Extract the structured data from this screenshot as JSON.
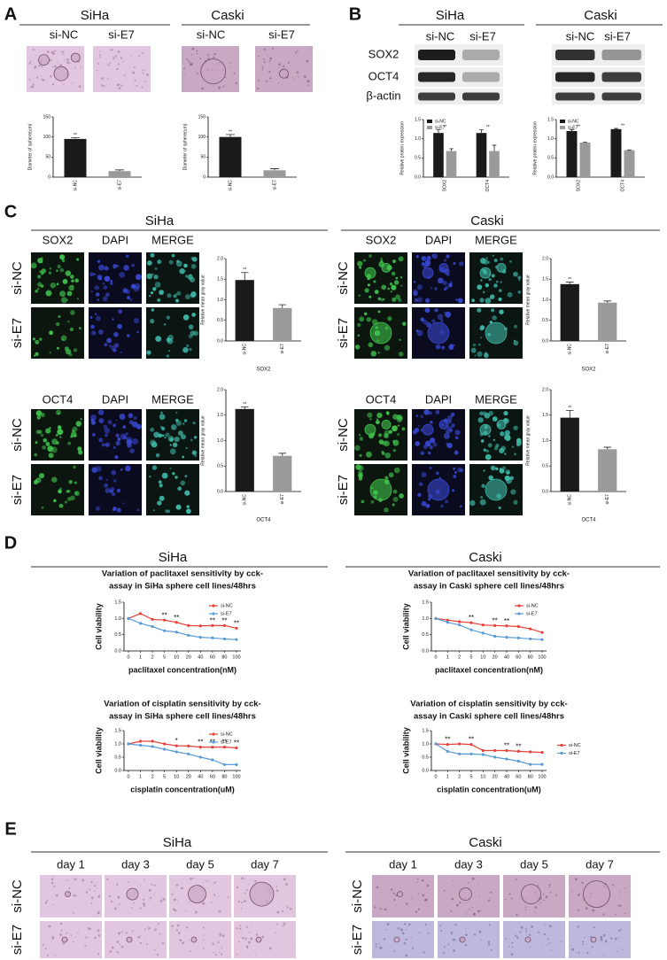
{
  "figure": {
    "letters": [
      "A",
      "B",
      "C",
      "D",
      "E"
    ],
    "cell_lines": [
      "SiHa",
      "Caski"
    ],
    "groups": [
      "si-NC",
      "si-E7"
    ],
    "blot_proteins": [
      "SOX2",
      "OCT4",
      "β-actin"
    ],
    "stains": [
      "SOX2",
      "DAPI",
      "MERGE",
      "OCT4"
    ],
    "days": [
      "day 1",
      "day 3",
      "day 5",
      "day 7"
    ]
  },
  "chart_data": [
    {
      "type": "bar",
      "ylabel": "Diameter of sphere(um)",
      "categories": [
        "si-NC",
        "si-E7"
      ],
      "values": [
        95,
        15
      ],
      "errors": [
        3,
        3
      ],
      "colors": [
        "#1a1a1a",
        "#9a9a9a"
      ],
      "ylim": [
        0,
        150
      ],
      "yticks": [
        0,
        50,
        100,
        150
      ],
      "annotations": [
        {
          "x": "si-NC",
          "text": "**"
        }
      ]
    },
    {
      "type": "bar",
      "ylabel": "Diameter of sphere(um)",
      "categories": [
        "si-NC",
        "si-E7"
      ],
      "values": [
        100,
        17
      ],
      "errors": [
        6,
        4
      ],
      "colors": [
        "#1a1a1a",
        "#9a9a9a"
      ],
      "ylim": [
        0,
        150
      ],
      "yticks": [
        0,
        50,
        100,
        150
      ],
      "annotations": [
        {
          "x": "si-NC",
          "text": "**"
        }
      ]
    },
    {
      "type": "bar",
      "ylabel": "Relative protein expression",
      "categories": [
        "SOX2",
        "OCT4"
      ],
      "series": [
        {
          "name": "si-NC",
          "color": "#1a1a1a",
          "values": [
            1.15,
            1.15
          ],
          "errors": [
            0.08,
            0.08
          ]
        },
        {
          "name": "si-E7",
          "color": "#9a9a9a",
          "values": [
            0.68,
            0.68
          ],
          "errors": [
            0.06,
            0.15
          ]
        }
      ],
      "ylim": [
        0,
        1.5
      ],
      "yticks": [
        {
          "value": 0,
          "label": "0.0"
        },
        {
          "value": 0.5,
          "label": "0.5"
        },
        {
          "value": 1,
          "label": "1.0"
        },
        {
          "value": 1.5,
          "label": "1.5"
        }
      ],
      "legend": "top-left",
      "annotations": [
        {
          "x": "SOX2",
          "text": "**"
        },
        {
          "x": "OCT4",
          "text": "**"
        }
      ]
    },
    {
      "type": "bar",
      "ylabel": "Relative protein expression",
      "categories": [
        "SOX2",
        "OCT4"
      ],
      "series": [
        {
          "name": "si-NC",
          "color": "#1a1a1a",
          "values": [
            1.2,
            1.25
          ],
          "errors": [
            0.04,
            0.02
          ]
        },
        {
          "name": "si-E7",
          "color": "#9a9a9a",
          "values": [
            0.9,
            0.7
          ],
          "errors": [
            0.01,
            0.01
          ]
        }
      ],
      "ylim": [
        0,
        1.5
      ],
      "yticks": [
        {
          "value": 0,
          "label": "0.0"
        },
        {
          "value": 0.5,
          "label": "0.5"
        },
        {
          "value": 1,
          "label": "1.0"
        },
        {
          "value": 1.5,
          "label": "1.5"
        }
      ],
      "legend": "top-left",
      "annotations": [
        {
          "x": "SOX2",
          "text": "**"
        },
        {
          "x": "OCT4",
          "text": "**"
        }
      ]
    },
    {
      "type": "bar",
      "ylabel": "Relative  mean gray value",
      "xlabel": "SOX2",
      "categories": [
        "si-NC",
        "si-E7"
      ],
      "values": [
        1.48,
        0.8
      ],
      "errors": [
        0.18,
        0.08
      ],
      "colors": [
        "#1a1a1a",
        "#9a9a9a"
      ],
      "ylim": [
        0,
        2
      ],
      "yticks": [
        {
          "value": 0,
          "label": "0.0"
        },
        {
          "value": 0.5,
          "label": "0.5"
        },
        {
          "value": 1,
          "label": "1.0"
        },
        {
          "value": 1.5,
          "label": "1.5"
        },
        {
          "value": 2,
          "label": "2.0"
        }
      ],
      "annotations": [
        {
          "x": "si-NC",
          "text": "**"
        }
      ]
    },
    {
      "type": "bar",
      "ylabel": "Relative  mean gray value",
      "xlabel": "OCT4",
      "categories": [
        "si-NC",
        "si-E7"
      ],
      "values": [
        1.62,
        0.7
      ],
      "errors": [
        0.04,
        0.05
      ],
      "colors": [
        "#1a1a1a",
        "#9a9a9a"
      ],
      "ylim": [
        0,
        2
      ],
      "yticks": [
        {
          "value": 0,
          "label": "0.0"
        },
        {
          "value": 0.5,
          "label": "0.5"
        },
        {
          "value": 1,
          "label": "1.0"
        },
        {
          "value": 1.5,
          "label": "1.5"
        },
        {
          "value": 2,
          "label": "2.0"
        }
      ],
      "annotations": [
        {
          "x": "si-NC",
          "text": "**"
        }
      ]
    },
    {
      "type": "bar",
      "ylabel": "Relative  mean gray value",
      "xlabel": "SOX2",
      "categories": [
        "si-NC",
        "si-E7"
      ],
      "values": [
        1.38,
        0.93
      ],
      "errors": [
        0.05,
        0.04
      ],
      "colors": [
        "#1a1a1a",
        "#9a9a9a"
      ],
      "ylim": [
        0,
        2
      ],
      "yticks": [
        {
          "value": 0,
          "label": "0.0"
        },
        {
          "value": 0.5,
          "label": "0.5"
        },
        {
          "value": 1,
          "label": "1.0"
        },
        {
          "value": 1.5,
          "label": "1.5"
        },
        {
          "value": 2,
          "label": "2.0"
        }
      ],
      "annotations": [
        {
          "x": "si-NC",
          "text": "**"
        }
      ]
    },
    {
      "type": "bar",
      "ylabel": "Relative  mean gray value",
      "xlabel": "OCT4",
      "categories": [
        "si-NC",
        "si-E7"
      ],
      "values": [
        1.45,
        0.83
      ],
      "errors": [
        0.14,
        0.04
      ],
      "colors": [
        "#1a1a1a",
        "#9a9a9a"
      ],
      "ylim": [
        0,
        2
      ],
      "yticks": [
        {
          "value": 0,
          "label": "0.0"
        },
        {
          "value": 0.5,
          "label": "0.5"
        },
        {
          "value": 1,
          "label": "1.0"
        },
        {
          "value": 1.5,
          "label": "1.5"
        },
        {
          "value": 2,
          "label": "2.0"
        }
      ],
      "annotations": [
        {
          "x": "si-NC",
          "text": "**"
        }
      ]
    },
    {
      "type": "line",
      "title": [
        "Variation of paclitaxel sensitivity by cck-",
        "assay in SiHa sphere cell lines/48hrs"
      ],
      "ylabel": "Cell viability",
      "xlabel": "paclitaxel concentration(nM)",
      "categories": [
        "0",
        "1",
        "2",
        "5",
        "10",
        "20",
        "40",
        "60",
        "80",
        "100"
      ],
      "series": [
        {
          "name": "si-NC",
          "color": "#e8403a",
          "values": [
            1.0,
            1.15,
            0.97,
            0.95,
            0.88,
            0.78,
            0.77,
            0.78,
            0.78,
            0.7
          ]
        },
        {
          "name": "si-E7",
          "color": "#5b9bd5",
          "values": [
            1.0,
            0.85,
            0.75,
            0.62,
            0.58,
            0.48,
            0.42,
            0.4,
            0.37,
            0.35
          ]
        }
      ],
      "ylim": [
        0,
        1.5
      ],
      "yticks": [
        {
          "value": 0,
          "label": "0.0"
        },
        {
          "value": 0.5,
          "label": "0.5"
        },
        {
          "value": 1,
          "label": "1.0"
        },
        {
          "value": 1.5,
          "label": "1.5"
        }
      ],
      "legend": "top-right",
      "annotations": [
        {
          "x": "5",
          "text": "**"
        },
        {
          "x": "10",
          "text": "**"
        },
        {
          "x": "60",
          "text": "**"
        },
        {
          "x": "80",
          "text": "**"
        },
        {
          "x": "100",
          "text": "**"
        }
      ]
    },
    {
      "type": "line",
      "title": [
        "Variation of paclitaxel sensitivity by cck-",
        "assay in Caski sphere cell lines/48hrs"
      ],
      "ylabel": "Cell viability",
      "xlabel": "paclitaxel concentration(nM)",
      "categories": [
        "0",
        "1",
        "2",
        "5",
        "10",
        "20",
        "40",
        "60",
        "80",
        "100"
      ],
      "series": [
        {
          "name": "si-NC",
          "color": "#e8403a",
          "values": [
            1.0,
            0.95,
            0.9,
            0.87,
            0.8,
            0.78,
            0.77,
            0.75,
            0.68,
            0.57
          ]
        },
        {
          "name": "si-E7",
          "color": "#5b9bd5",
          "values": [
            1.0,
            0.88,
            0.8,
            0.65,
            0.55,
            0.45,
            0.42,
            0.4,
            0.37,
            0.35
          ]
        }
      ],
      "ylim": [
        0,
        1.5
      ],
      "yticks": [
        {
          "value": 0,
          "label": "0.0"
        },
        {
          "value": 0.5,
          "label": "0.5"
        },
        {
          "value": 1,
          "label": "1.0"
        },
        {
          "value": 1.5,
          "label": "1.5"
        }
      ],
      "legend": "top-right",
      "annotations": [
        {
          "x": "5",
          "text": "**"
        },
        {
          "x": "20",
          "text": "**"
        },
        {
          "x": "40",
          "text": "**"
        }
      ]
    },
    {
      "type": "line",
      "title": [
        "Variation of cisplatin sensitivity by cck-",
        "assay in SiHa sphere cell lines/48hrs"
      ],
      "ylabel": "Cell viability",
      "xlabel": "cisplatin concentration(uM)",
      "categories": [
        "0",
        "1",
        "2",
        "5",
        "10",
        "20",
        "40",
        "60",
        "80",
        "100"
      ],
      "series": [
        {
          "name": "si-NC",
          "color": "#e8403a",
          "values": [
            1.0,
            1.1,
            1.1,
            1.0,
            0.93,
            0.92,
            0.88,
            0.88,
            0.88,
            0.85
          ]
        },
        {
          "name": "si-E7",
          "color": "#5b9bd5",
          "values": [
            1.0,
            0.95,
            0.9,
            0.8,
            0.7,
            0.62,
            0.5,
            0.4,
            0.22,
            0.22
          ]
        }
      ],
      "ylim": [
        0,
        1.5
      ],
      "yticks": [
        {
          "value": 0,
          "label": "0.0"
        },
        {
          "value": 0.5,
          "label": "0.5"
        },
        {
          "value": 1,
          "label": "1.0"
        },
        {
          "value": 1.5,
          "label": "1.5"
        }
      ],
      "legend": "top-right",
      "annotations": [
        {
          "x": "10",
          "text": "*"
        },
        {
          "x": "40",
          "text": "**"
        },
        {
          "x": "60",
          "text": "**"
        },
        {
          "x": "80",
          "text": "**"
        },
        {
          "x": "100",
          "text": "**"
        }
      ]
    },
    {
      "type": "line",
      "title": [
        "Variation of cisplatin sensitivity by cck-",
        "assay in Caski sphere cell lines/48hrs"
      ],
      "ylabel": "Cell viability",
      "xlabel": "cisplatin concentration(uM)",
      "categories": [
        "0",
        "1",
        "2",
        "5",
        "10",
        "20",
        "40",
        "60",
        "80",
        "100"
      ],
      "series": [
        {
          "name": "si-NC",
          "color": "#e8403a",
          "values": [
            1.0,
            0.98,
            1.0,
            0.98,
            0.75,
            0.75,
            0.75,
            0.72,
            0.7,
            0.68
          ]
        },
        {
          "name": "si-E7",
          "color": "#5b9bd5",
          "values": [
            1.0,
            0.72,
            0.62,
            0.62,
            0.6,
            0.5,
            0.43,
            0.35,
            0.23,
            0.23
          ]
        }
      ],
      "ylim": [
        0,
        1.5
      ],
      "yticks": [
        {
          "value": 0,
          "label": "0.0"
        },
        {
          "value": 0.5,
          "label": "0.5"
        },
        {
          "value": 1,
          "label": "1.0"
        },
        {
          "value": 1.5,
          "label": "1.5"
        }
      ],
      "legend": "right",
      "annotations": [
        {
          "x": "1",
          "text": "**"
        },
        {
          "x": "5",
          "text": "**"
        },
        {
          "x": "40",
          "text": "**"
        },
        {
          "x": "60",
          "text": "**"
        }
      ]
    }
  ]
}
